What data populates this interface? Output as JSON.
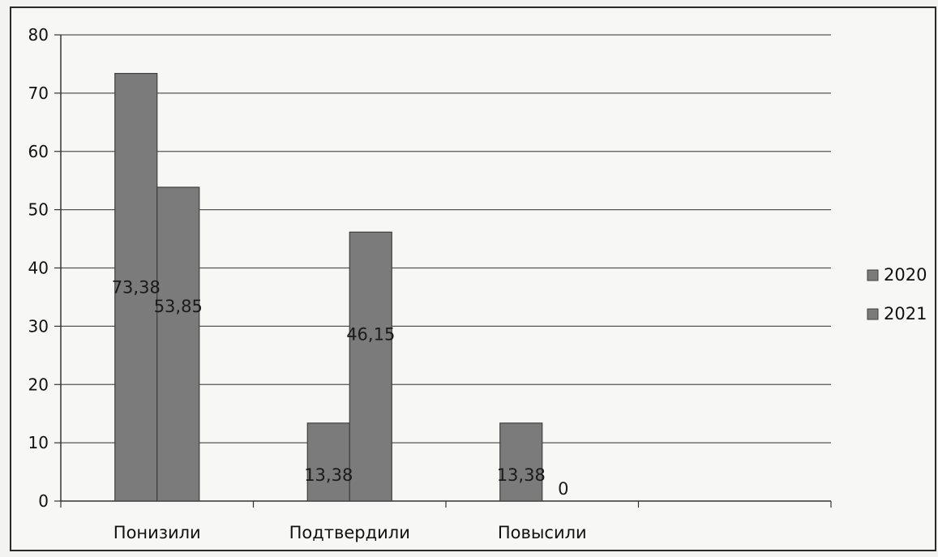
{
  "chart_data": {
    "type": "bar",
    "categories": [
      "Понизили",
      "Подтвердили",
      "Повысили",
      ""
    ],
    "series": [
      {
        "name": "2020",
        "values": [
          73.38,
          13.38,
          13.38,
          null
        ],
        "labels": [
          "73,38",
          "13,38",
          "13,38",
          ""
        ]
      },
      {
        "name": "2021",
        "values": [
          53.85,
          46.15,
          0,
          null
        ],
        "labels": [
          "53,85",
          "46,15",
          "0",
          ""
        ]
      }
    ],
    "yticks": [
      "0",
      "10",
      "20",
      "30",
      "40",
      "50",
      "60",
      "70",
      "80"
    ],
    "ylim": [
      0,
      80
    ],
    "grid": true,
    "legend_position": "right",
    "colors": {
      "bar": "#7b7b7b",
      "bar_edge": "#3f3f3f",
      "grid": "#555555",
      "axis": "#333333"
    }
  }
}
